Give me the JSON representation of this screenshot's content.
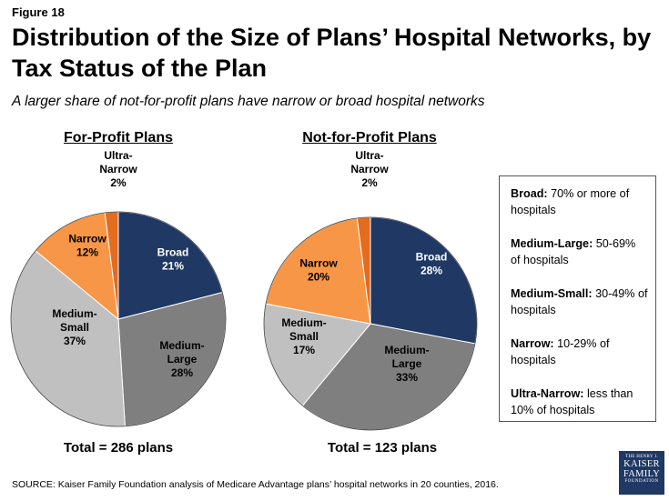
{
  "figure_label": "Figure 18",
  "title": "Distribution of the Size of Plans’ Hospital Networks, by Tax Status of the Plan",
  "subtitle": "A larger share of not-for-profit plans have narrow or broad hospital networks",
  "colors": {
    "Broad": "#1f3864",
    "Medium-Large": "#7f7f7f",
    "Medium-Small": "#c0c0c0",
    "Narrow": "#f79646",
    "Ultra-Narrow": "#e36c1f"
  },
  "chart_data": [
    {
      "type": "pie",
      "title": "For-Profit Plans",
      "total_label": "Total = 286 plans",
      "slices": [
        {
          "key": "broad",
          "label_lines": [
            "Broad",
            "21%"
          ],
          "value": 21
        },
        {
          "key": "medium_large",
          "label_lines": [
            "Medium-",
            "Large",
            "28%"
          ],
          "value": 28
        },
        {
          "key": "medium_small",
          "label_lines": [
            "Medium-",
            "Small",
            "37%"
          ],
          "value": 37
        },
        {
          "key": "narrow",
          "label_lines": [
            "Narrow",
            "12%"
          ],
          "value": 12
        },
        {
          "key": "ultra_narrow",
          "label_lines": [
            "Ultra-",
            "Narrow",
            "2%"
          ],
          "value": 2
        }
      ]
    },
    {
      "type": "pie",
      "title": "Not-for-Profit Plans",
      "total_label": "Total = 123 plans",
      "slices": [
        {
          "key": "broad",
          "label_lines": [
            "Broad",
            "28%"
          ],
          "value": 28
        },
        {
          "key": "medium_large",
          "label_lines": [
            "Medium-",
            "Large",
            "33%"
          ],
          "value": 33
        },
        {
          "key": "medium_small",
          "label_lines": [
            "Medium-",
            "Small",
            "17%"
          ],
          "value": 17
        },
        {
          "key": "narrow",
          "label_lines": [
            "Narrow",
            "20%"
          ],
          "value": 20
        },
        {
          "key": "ultra_narrow",
          "label_lines": [
            "Ultra-",
            "Narrow",
            "2%"
          ],
          "value": 2
        }
      ]
    }
  ],
  "legend": [
    {
      "term": "Broad:",
      "desc": "70% or more of hospitals"
    },
    {
      "term": "Medium-Large:",
      "desc": "50-69% of hospitals"
    },
    {
      "term": "Medium-Small:",
      "desc": "30-49% of hospitals"
    },
    {
      "term": "Narrow:",
      "desc": "10-29% of hospitals"
    },
    {
      "term": "Ultra-Narrow:",
      "desc": "less than 10% of hospitals"
    }
  ],
  "source": "SOURCE: Kaiser Family Foundation analysis of Medicare Advantage plans’ hospital networks in 20 counties, 2016.",
  "logo": {
    "line1": "THE HENRY J.",
    "line2": "KAISER",
    "line3": "FAMILY",
    "line4": "FOUNDATION"
  }
}
